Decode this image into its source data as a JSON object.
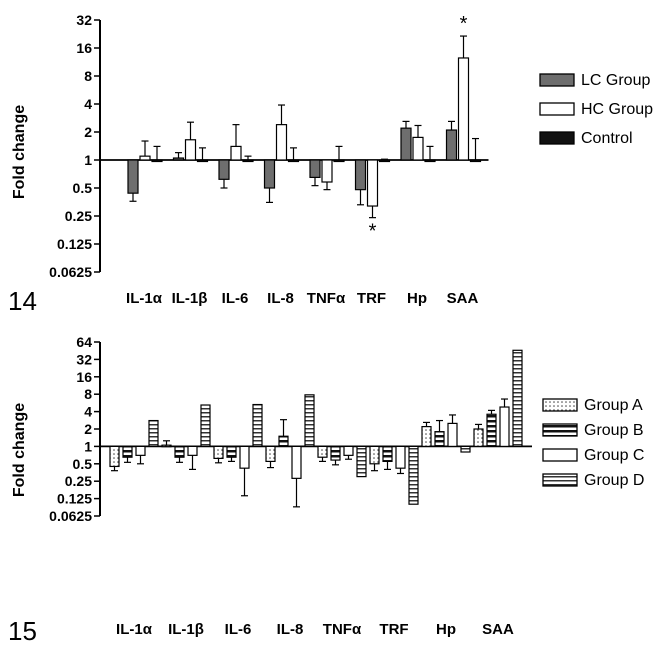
{
  "chart_data": [
    {
      "type": "bar",
      "panel_label": "14",
      "ylabel": "Fold change",
      "yscale": "log2",
      "ylim": [
        0.0625,
        32
      ],
      "yticks": [
        "32",
        "16",
        "8",
        "4",
        "2",
        "1",
        "0.5",
        "0.25",
        "0.125",
        "0.0625"
      ],
      "categories": [
        "IL-1α",
        "IL-1β",
        "IL-6",
        "IL-8",
        "TNFα",
        "TRF",
        "Hp",
        "SAA"
      ],
      "series": [
        {
          "name": "LC Group",
          "color": "#6e6e6e",
          "pattern": "solid-gray",
          "values": [
            0.44,
            1.05,
            0.62,
            0.5,
            0.65,
            0.48,
            2.2,
            2.1
          ],
          "err": [
            0.08,
            0.15,
            0.12,
            0.15,
            0.12,
            0.15,
            0.4,
            0.5
          ]
        },
        {
          "name": "HC Group",
          "color": "#ffffff",
          "pattern": "white",
          "values": [
            1.1,
            1.65,
            1.4,
            2.4,
            0.58,
            0.32,
            1.75,
            12.5
          ],
          "err": [
            0.5,
            0.9,
            1.0,
            1.5,
            0.1,
            0.08,
            0.6,
            9.0
          ]
        },
        {
          "name": "Control",
          "color": "#111111",
          "pattern": "solid-black",
          "values": [
            1.0,
            1.0,
            1.0,
            1.0,
            1.0,
            1.0,
            1.0,
            1.0
          ],
          "err": [
            0.4,
            0.35,
            0.1,
            0.35,
            0.4,
            0.02,
            0.4,
            0.7
          ]
        }
      ],
      "annotations": [
        {
          "category": "TRF",
          "series": "HC Group",
          "text": "*",
          "position": "below"
        },
        {
          "category": "SAA",
          "series": "HC Group",
          "text": "*",
          "position": "above"
        }
      ],
      "legend": "right"
    },
    {
      "type": "bar",
      "panel_label": "15",
      "ylabel": "Fold change",
      "yscale": "log2",
      "ylim": [
        0.0625,
        64
      ],
      "yticks": [
        "64",
        "32",
        "16",
        "8",
        "4",
        "2",
        "1",
        "0.5",
        "0.25",
        "0.125",
        "0.0625"
      ],
      "categories": [
        "IL-1α",
        "IL-1β",
        "IL-6",
        "IL-8",
        "TNFα",
        "TRF",
        "Hp",
        "SAA"
      ],
      "series": [
        {
          "name": "Group A",
          "color": "#ffffff",
          "pattern": "dotted",
          "values": [
            0.45,
            1.05,
            0.62,
            0.55,
            0.65,
            0.5,
            2.2,
            2.0
          ],
          "err": [
            0.07,
            0.2,
            0.1,
            0.12,
            0.1,
            0.12,
            0.4,
            0.4
          ]
        },
        {
          "name": "Group B",
          "color": "#ffffff",
          "pattern": "bold-horizontal",
          "values": [
            0.65,
            0.65,
            0.65,
            1.5,
            0.58,
            0.55,
            1.8,
            3.6
          ],
          "err": [
            0.12,
            0.12,
            0.1,
            1.4,
            0.1,
            0.15,
            1.0,
            0.6
          ]
        },
        {
          "name": "Group C",
          "color": "#ffffff",
          "pattern": "white",
          "values": [
            0.7,
            0.7,
            0.42,
            0.28,
            0.7,
            0.42,
            2.5,
            4.8
          ],
          "err": [
            0.2,
            0.3,
            0.28,
            0.19,
            0.1,
            0.08,
            1.0,
            1.8
          ]
        },
        {
          "name": "Group D",
          "color": "#ffffff",
          "pattern": "horizontal",
          "values": [
            2.8,
            5.2,
            5.3,
            7.8,
            0.3,
            0.1,
            0.8,
            46
          ],
          "err": [
            0,
            0,
            0,
            0,
            0,
            0,
            0,
            0
          ]
        }
      ],
      "legend": "right"
    }
  ]
}
